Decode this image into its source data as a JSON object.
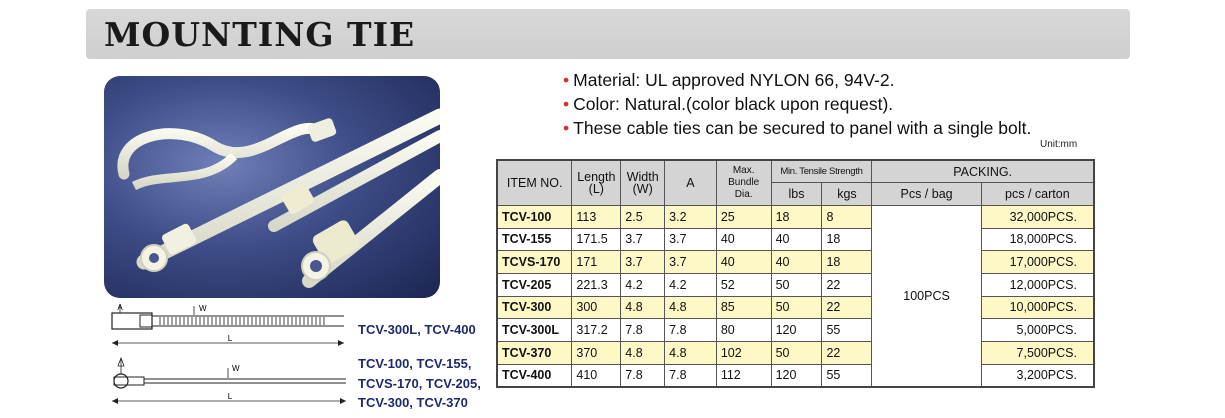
{
  "title": "MOUNTING TIE",
  "features": [
    "Material: UL approved NYLON 66, 94V-2.",
    "Color: Natural.(color black upon request).",
    "These cable ties can be secured to panel with a single bolt."
  ],
  "unit_note": "Unit:mm",
  "table": {
    "headers": {
      "item_no": "ITEM NO.",
      "length": "Length",
      "length_unit": "(L)",
      "width": "Width",
      "width_unit": "(W)",
      "a": "A",
      "max_bundle_1": "Max.",
      "max_bundle_2": "Bundle",
      "max_bundle_3": "Dia.",
      "tensile": "Min. Tensile Strength",
      "lbs": "lbs",
      "kgs": "kgs",
      "packing": "PACKING.",
      "pcs_bag": "Pcs / bag",
      "pcs_carton": "pcs / carton"
    },
    "pcs_per_bag": "100PCS",
    "rows": [
      {
        "item": "TCV-100",
        "length": "113",
        "width": "2.5",
        "a": "3.2",
        "bundle": "25",
        "lbs": "18",
        "kgs": "8",
        "carton": "32,000PCS."
      },
      {
        "item": "TCV-155",
        "length": "171.5",
        "width": "3.7",
        "a": "3.7",
        "bundle": "40",
        "lbs": "40",
        "kgs": "18",
        "carton": "18,000PCS."
      },
      {
        "item": "TCVS-170",
        "length": "171",
        "width": "3.7",
        "a": "3.7",
        "bundle": "40",
        "lbs": "40",
        "kgs": "18",
        "carton": "17,000PCS."
      },
      {
        "item": "TCV-205",
        "length": "221.3",
        "width": "4.2",
        "a": "4.2",
        "bundle": "52",
        "lbs": "50",
        "kgs": "22",
        "carton": "12,000PCS."
      },
      {
        "item": "TCV-300",
        "length": "300",
        "width": "4.8",
        "a": "4.8",
        "bundle": "85",
        "lbs": "50",
        "kgs": "22",
        "carton": "10,000PCS."
      },
      {
        "item": "TCV-300L",
        "length": "317.2",
        "width": "7.8",
        "a": "7.8",
        "bundle": "80",
        "lbs": "120",
        "kgs": "55",
        "carton": "5,000PCS."
      },
      {
        "item": "TCV-370",
        "length": "370",
        "width": "4.8",
        "a": "4.8",
        "bundle": "102",
        "lbs": "50",
        "kgs": "22",
        "carton": "7,500PCS."
      },
      {
        "item": "TCV-400",
        "length": "410",
        "width": "7.8",
        "a": "7.8",
        "bundle": "112",
        "lbs": "120",
        "kgs": "55",
        "carton": "3,200PCS."
      }
    ]
  },
  "drawings": {
    "top": {
      "label_a": "A",
      "label_w": "W",
      "label_l": "L",
      "models": "TCV-300L, TCV-400"
    },
    "bottom": {
      "label_w": "W",
      "label_l": "L",
      "models_1": "TCV-100, TCV-155,",
      "models_2": "TCVS-170, TCV-205,",
      "models_3": "TCV-300, TCV-370"
    }
  },
  "colors": {
    "title_bar": "#d4d4d4",
    "bullet": "#d0342c",
    "highlight_row": "#fdf8c6",
    "model_text": "#1e2a6e"
  }
}
